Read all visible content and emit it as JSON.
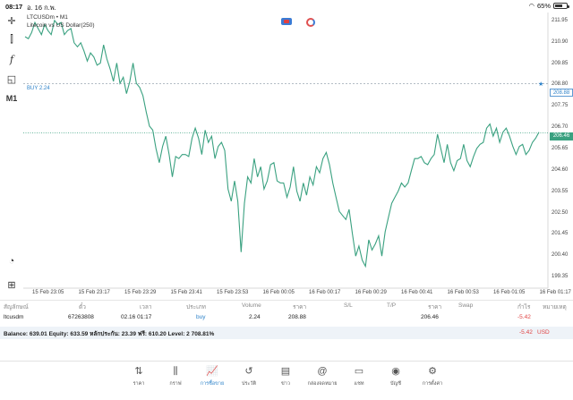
{
  "status": {
    "time": "08:17",
    "date": "อ. 16 ก.พ.",
    "battery": "65%",
    "battery_level": 0.65
  },
  "chart": {
    "symbol_line": "LTCUSDm • M1",
    "description": "Litecoin vs US Dollar(250)",
    "buy_label": "BUY 2.24",
    "buy_price": "208.88",
    "current_price": "206.46",
    "y_ticks": [
      "211.95",
      "210.90",
      "209.85",
      "208.80",
      "207.75",
      "206.70",
      "205.65",
      "204.60",
      "203.55",
      "202.50",
      "201.45",
      "200.40",
      "199.35"
    ],
    "x_ticks": [
      "15 Feb 23:05",
      "15 Feb 23:17",
      "15 Feb 23:29",
      "15 Feb 23:41",
      "15 Feb 23:53",
      "16 Feb 00:05",
      "16 Feb 00:17",
      "16 Feb 00:29",
      "16 Feb 00:41",
      "16 Feb 00:53",
      "16 Feb 01:05",
      "16 Feb 01:17"
    ],
    "tools": [
      "crosshair-icon",
      "candles-icon",
      "function-icon",
      "objects-icon",
      "timeframe"
    ],
    "timeframe": "M1",
    "line_color": "#3aa180",
    "buy_color": "#2d82c9"
  },
  "chart_data": {
    "type": "line",
    "ylim": [
      199.0,
      212.3
    ],
    "series": [
      {
        "values": [
          211.2,
          211.1,
          211.4,
          211.9,
          211.6,
          211.3,
          211.8,
          211.5,
          211.3,
          212.0,
          211.8,
          211.9,
          211.3,
          211.5,
          211.6,
          210.9,
          210.7,
          210.9,
          210.5,
          210.0,
          210.4,
          210.2,
          209.8,
          209.9,
          210.8,
          210.1,
          209.6,
          209.0,
          209.9,
          208.9,
          209.2,
          208.4,
          209.0,
          209.9,
          208.9,
          208.7,
          208.3,
          207.5,
          206.8,
          206.6,
          205.7,
          205.0,
          205.8,
          206.3,
          205.4,
          204.3,
          205.3,
          205.2,
          205.4,
          205.4,
          205.3,
          206.2,
          206.7,
          206.2,
          205.4,
          206.6,
          206.0,
          206.3,
          205.2,
          205.8,
          206.0,
          205.6,
          203.7,
          203.1,
          204.1,
          203.1,
          200.6,
          203.0,
          204.3,
          204.0,
          205.2,
          204.3,
          204.8,
          203.7,
          204.1,
          204.9,
          205.0,
          204.1,
          204.0,
          204.0,
          203.3,
          203.8,
          204.8,
          203.6,
          203.1,
          204.0,
          203.4,
          204.3,
          203.9,
          204.8,
          204.5,
          205.2,
          205.5,
          204.9,
          204.0,
          203.3,
          202.6,
          202.4,
          202.2,
          202.7,
          201.5,
          200.4,
          200.9,
          200.2,
          199.9,
          201.2,
          200.7,
          201.0,
          201.4,
          200.4,
          201.6,
          202.3,
          203.0,
          203.3,
          203.6,
          204.0,
          203.8,
          204.0,
          204.6,
          205.2,
          205.2,
          205.3,
          205.0,
          204.9,
          205.2,
          205.4,
          206.4,
          205.7,
          205.0,
          205.9,
          205.0,
          204.6,
          205.1,
          205.2,
          205.9,
          205.1,
          204.8,
          205.3,
          205.7,
          205.9,
          206.0,
          206.7,
          206.9,
          206.3,
          206.7,
          206.0,
          206.5,
          206.7,
          206.3,
          205.8,
          205.4,
          205.8,
          205.9,
          205.4,
          205.6,
          206.0,
          206.2,
          206.5
        ]
      }
    ]
  },
  "table": {
    "headers": [
      "สัญลักษณ์",
      "ตั๋ว",
      "เวลา",
      "ประเภท",
      "Volume",
      "ราคา",
      "S/L",
      "T/P",
      "ราคา",
      "Swap",
      "กำไร",
      "หมายเหตุ"
    ],
    "row": {
      "symbol": "ltcusdm",
      "ticket": "67263808",
      "time": "02.16 01:17",
      "type": "buy",
      "volume": "2.24",
      "price": "208.88",
      "sl": "",
      "tp": "",
      "current": "206.46",
      "swap": "",
      "profit": "-5.42",
      "comment": ""
    },
    "balance_text": "Balance: 639.01 Equity: 633.59 หลักประกัน: 23.39 ฟรี: 610.20 Level: 2 708.81%",
    "total_profit": "-5.42",
    "currency": "USD",
    "loss_color": "#e04444"
  },
  "nav": [
    {
      "icon": "sort-arrows-icon",
      "label": "ราคา",
      "glyph": "⇅"
    },
    {
      "icon": "candlestick-icon",
      "label": "กราฟ",
      "glyph": "⫼"
    },
    {
      "icon": "trade-chart-icon",
      "label": "การซื้อขาย",
      "glyph": "📈",
      "active": true
    },
    {
      "icon": "history-icon",
      "label": "ประวัติ",
      "glyph": "↺"
    },
    {
      "icon": "news-icon",
      "label": "ข่าว",
      "glyph": "▤"
    },
    {
      "icon": "mailbox-icon",
      "label": "กล่องจดหมาย",
      "glyph": "@"
    },
    {
      "icon": "chat-icon",
      "label": "แชท",
      "glyph": "▭"
    },
    {
      "icon": "account-icon",
      "label": "บัญชี",
      "glyph": "◉"
    },
    {
      "icon": "settings-icon",
      "label": "การตั้งค่า",
      "glyph": "⚙"
    }
  ]
}
